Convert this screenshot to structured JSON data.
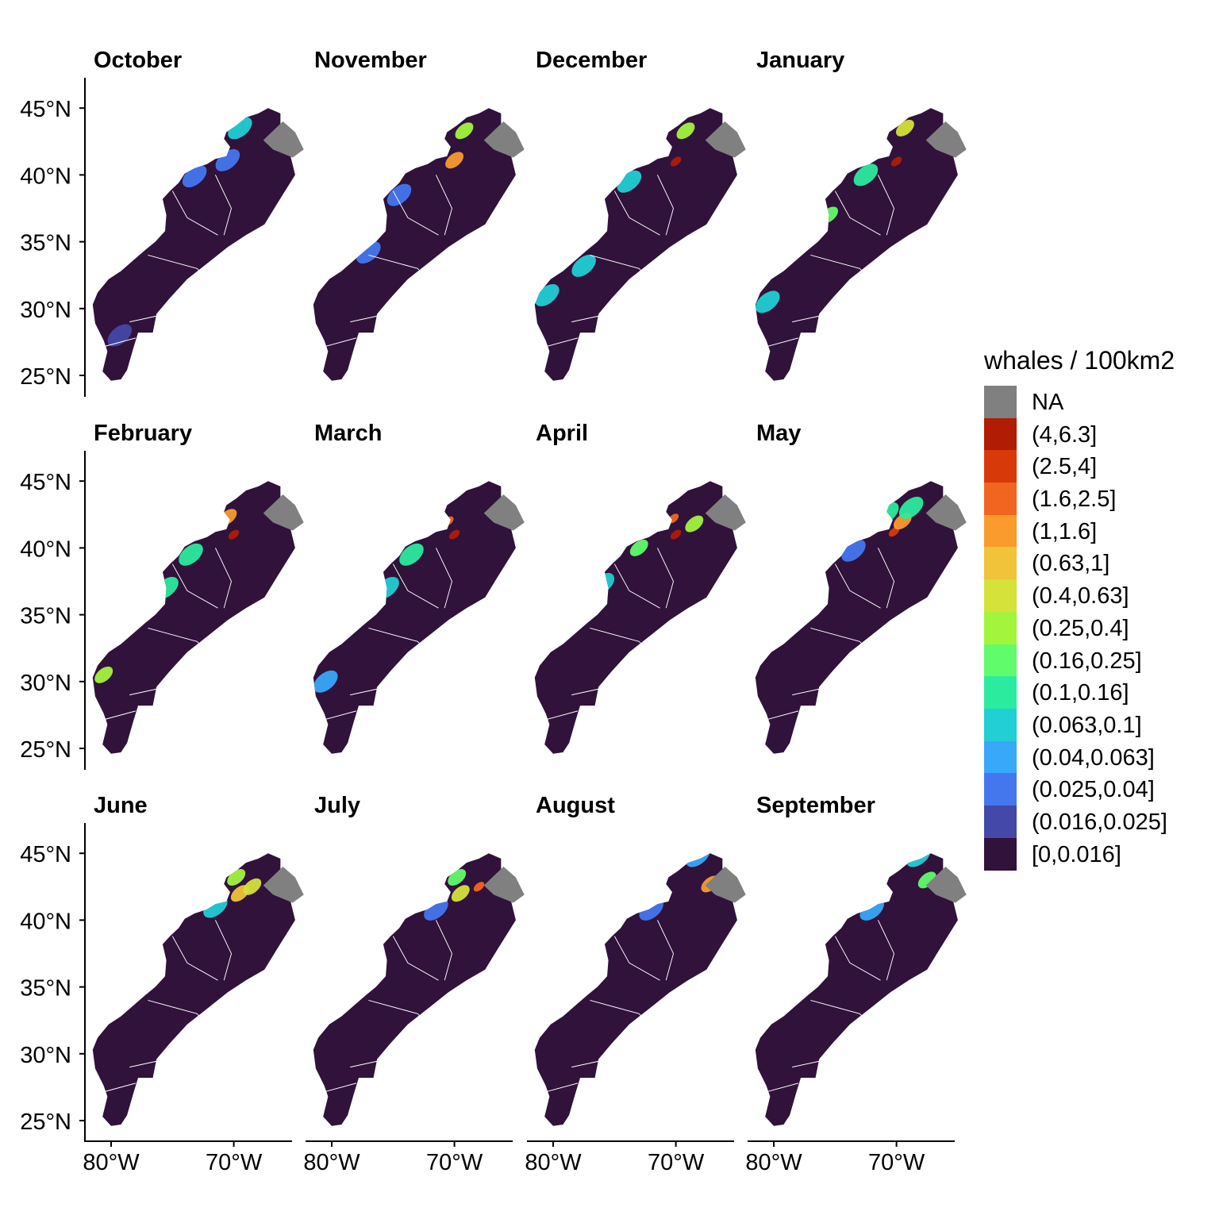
{
  "legend": {
    "title": "whales / 100km2",
    "items": [
      {
        "label": "NA",
        "color": "#808080"
      },
      {
        "label": "(4,6.3]",
        "color": "#b01c04"
      },
      {
        "label": "(2.5,4]",
        "color": "#d73a08"
      },
      {
        "label": "(1.6,2.5]",
        "color": "#f26521"
      },
      {
        "label": "(1,1.6]",
        "color": "#f99b2d"
      },
      {
        "label": "(0.63,1]",
        "color": "#f0c33a"
      },
      {
        "label": "(0.4,0.63]",
        "color": "#d4e23a"
      },
      {
        "label": "(0.25,0.4]",
        "color": "#a3f43c"
      },
      {
        "label": "(0.16,0.25]",
        "color": "#61fc6c"
      },
      {
        "label": "(0.1,0.16]",
        "color": "#2beb9e"
      },
      {
        "label": "(0.063,0.1]",
        "color": "#22cfd4"
      },
      {
        "label": "(0.04,0.063]",
        "color": "#38a8f8"
      },
      {
        "label": "(0.025,0.04]",
        "color": "#4477ee"
      },
      {
        "label": "(0.016,0.025]",
        "color": "#4448a8"
      },
      {
        "label": "[0,0.016]",
        "color": "#30123b"
      }
    ]
  },
  "axes": {
    "y_ticks": [
      "45°N",
      "40°N",
      "35°N",
      "30°N",
      "25°N"
    ],
    "x_ticks": [
      "80°W",
      "70°W"
    ]
  },
  "panels": [
    {
      "month": "October",
      "hotspots": [
        {
          "lon": -70.5,
          "lat": 41.1,
          "bin": 12
        },
        {
          "lon": -69.5,
          "lat": 43.5,
          "bin": 10
        },
        {
          "lon": -73.2,
          "lat": 39.9,
          "bin": 12
        },
        {
          "lon": -79.3,
          "lat": 28.0,
          "bin": 13
        }
      ]
    },
    {
      "month": "November",
      "hotspots": [
        {
          "lon": -70.0,
          "lat": 41.1,
          "bin": 4
        },
        {
          "lon": -69.2,
          "lat": 43.3,
          "bin": 7
        },
        {
          "lon": -74.5,
          "lat": 38.5,
          "bin": 12
        },
        {
          "lon": -77.0,
          "lat": 34.2,
          "bin": 12
        }
      ]
    },
    {
      "month": "December",
      "hotspots": [
        {
          "lon": -70.0,
          "lat": 41.0,
          "bin": 1
        },
        {
          "lon": -69.2,
          "lat": 43.3,
          "bin": 7
        },
        {
          "lon": -73.8,
          "lat": 39.5,
          "bin": 10
        },
        {
          "lon": -77.5,
          "lat": 33.2,
          "bin": 10
        },
        {
          "lon": -80.5,
          "lat": 31.0,
          "bin": 10
        }
      ]
    },
    {
      "month": "January",
      "hotspots": [
        {
          "lon": -70.0,
          "lat": 41.0,
          "bin": 1
        },
        {
          "lon": -69.3,
          "lat": 43.5,
          "bin": 6
        },
        {
          "lon": -72.5,
          "lat": 40.0,
          "bin": 9
        },
        {
          "lon": -75.5,
          "lat": 37.0,
          "bin": 8
        },
        {
          "lon": -80.5,
          "lat": 30.5,
          "bin": 10
        }
      ]
    },
    {
      "month": "February",
      "hotspots": [
        {
          "lon": -70.0,
          "lat": 41.0,
          "bin": 1
        },
        {
          "lon": -70.5,
          "lat": 42.3,
          "bin": 4
        },
        {
          "lon": -73.5,
          "lat": 39.5,
          "bin": 9
        },
        {
          "lon": -75.5,
          "lat": 37.0,
          "bin": 9
        },
        {
          "lon": -80.6,
          "lat": 30.5,
          "bin": 7
        }
      ]
    },
    {
      "month": "March",
      "hotspots": [
        {
          "lon": -70.0,
          "lat": 41.0,
          "bin": 1
        },
        {
          "lon": -70.5,
          "lat": 42.0,
          "bin": 3
        },
        {
          "lon": -73.5,
          "lat": 39.5,
          "bin": 9
        },
        {
          "lon": -75.5,
          "lat": 37.0,
          "bin": 10
        },
        {
          "lon": -80.5,
          "lat": 30.0,
          "bin": 11
        }
      ]
    },
    {
      "month": "April",
      "hotspots": [
        {
          "lon": -70.0,
          "lat": 41.0,
          "bin": 1
        },
        {
          "lon": -70.2,
          "lat": 42.2,
          "bin": 3
        },
        {
          "lon": -73.0,
          "lat": 40.0,
          "bin": 8
        },
        {
          "lon": -76.0,
          "lat": 37.3,
          "bin": 10
        },
        {
          "lon": -68.5,
          "lat": 41.8,
          "bin": 7
        }
      ]
    },
    {
      "month": "May",
      "hotspots": [
        {
          "lon": -70.2,
          "lat": 41.2,
          "bin": 2
        },
        {
          "lon": -69.5,
          "lat": 42.0,
          "bin": 4
        },
        {
          "lon": -70.8,
          "lat": 42.6,
          "bin": 9
        },
        {
          "lon": -73.5,
          "lat": 39.8,
          "bin": 12
        },
        {
          "lon": -68.8,
          "lat": 43.0,
          "bin": 9
        }
      ]
    },
    {
      "month": "June",
      "hotspots": [
        {
          "lon": -69.5,
          "lat": 42.0,
          "bin": 5
        },
        {
          "lon": -69.8,
          "lat": 43.2,
          "bin": 7
        },
        {
          "lon": -68.5,
          "lat": 42.5,
          "bin": 6
        },
        {
          "lon": -71.5,
          "lat": 41.0,
          "bin": 10
        }
      ]
    },
    {
      "month": "July",
      "hotspots": [
        {
          "lon": -69.5,
          "lat": 42.0,
          "bin": 6
        },
        {
          "lon": -69.8,
          "lat": 43.2,
          "bin": 8
        },
        {
          "lon": -68.0,
          "lat": 42.5,
          "bin": 3
        },
        {
          "lon": -71.5,
          "lat": 40.8,
          "bin": 12
        }
      ]
    },
    {
      "month": "August",
      "hotspots": [
        {
          "lon": -67.2,
          "lat": 42.7,
          "bin": 4
        },
        {
          "lon": -68.2,
          "lat": 44.8,
          "bin": 11
        },
        {
          "lon": -72.0,
          "lat": 40.8,
          "bin": 12
        }
      ]
    },
    {
      "month": "September",
      "hotspots": [
        {
          "lon": -67.5,
          "lat": 43.0,
          "bin": 8
        },
        {
          "lon": -68.2,
          "lat": 44.8,
          "bin": 10
        },
        {
          "lon": -72.0,
          "lat": 40.8,
          "bin": 11
        }
      ]
    }
  ]
}
